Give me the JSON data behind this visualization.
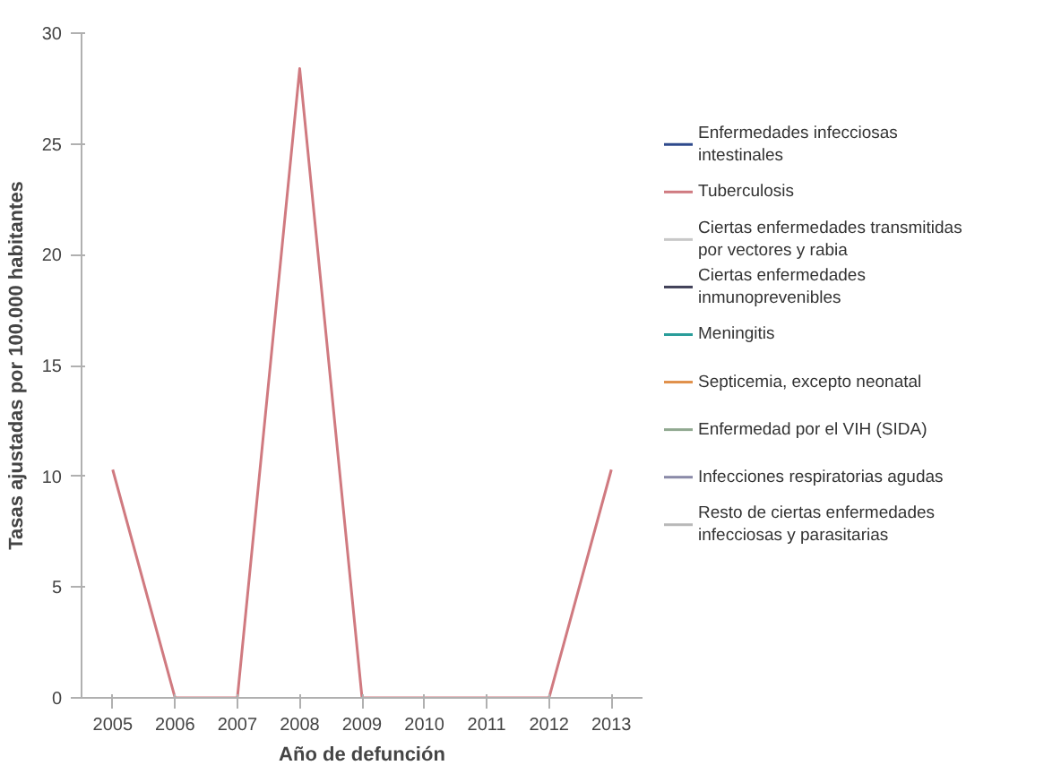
{
  "chart_data": {
    "type": "line",
    "xlabel": "Año de defunción",
    "ylabel": "Tasas ajustadas por 100.000 habitantes",
    "x": [
      2005,
      2006,
      2007,
      2008,
      2009,
      2010,
      2011,
      2012,
      2013
    ],
    "xlim": [
      2004.5,
      2013.5
    ],
    "xticks": [
      2005,
      2006,
      2007,
      2008,
      2009,
      2010,
      2011,
      2012,
      2013
    ],
    "ylim": [
      0,
      30
    ],
    "yticks": [
      0,
      5,
      10,
      15,
      20,
      25,
      30
    ],
    "grid": false,
    "legend": "right",
    "marker": "none",
    "line_style": "solid",
    "series": [
      {
        "name": "Enfermedades infecciosas intestinales",
        "color": "#2e4a8c",
        "values": [
          null,
          null,
          null,
          null,
          null,
          null,
          null,
          null,
          null
        ]
      },
      {
        "name": "Tuberculosis",
        "color": "#d07a80",
        "values": [
          10.3,
          0,
          0,
          28.4,
          0,
          0,
          0,
          0,
          10.3
        ]
      },
      {
        "name": "Ciertas enfermedades transmitidas por vectores y rabia",
        "color": "#c8c8c8",
        "values": [
          null,
          null,
          null,
          null,
          null,
          null,
          null,
          null,
          null
        ]
      },
      {
        "name": "Ciertas enfermedades inmunoprevenibles",
        "color": "#404058",
        "values": [
          null,
          null,
          null,
          null,
          null,
          null,
          null,
          null,
          null
        ]
      },
      {
        "name": "Meningitis",
        "color": "#2a9d9a",
        "values": [
          null,
          null,
          null,
          null,
          null,
          null,
          null,
          null,
          null
        ]
      },
      {
        "name": "Septicemia, excepto neonatal",
        "color": "#e0904a",
        "values": [
          null,
          null,
          null,
          null,
          null,
          null,
          null,
          null,
          null
        ]
      },
      {
        "name": "Enfermedad por el VIH (SIDA)",
        "color": "#90a890",
        "values": [
          null,
          null,
          null,
          null,
          null,
          null,
          null,
          null,
          null
        ]
      },
      {
        "name": "Infecciones respiratorias agudas",
        "color": "#8a8aa8",
        "values": [
          null,
          null,
          null,
          null,
          null,
          null,
          null,
          null,
          null
        ]
      },
      {
        "name": "Resto de ciertas enfermedades infecciosas y parasitarias",
        "color": "#b8b8b8",
        "values": [
          null,
          null,
          null,
          null,
          null,
          null,
          null,
          null,
          null
        ]
      }
    ]
  }
}
